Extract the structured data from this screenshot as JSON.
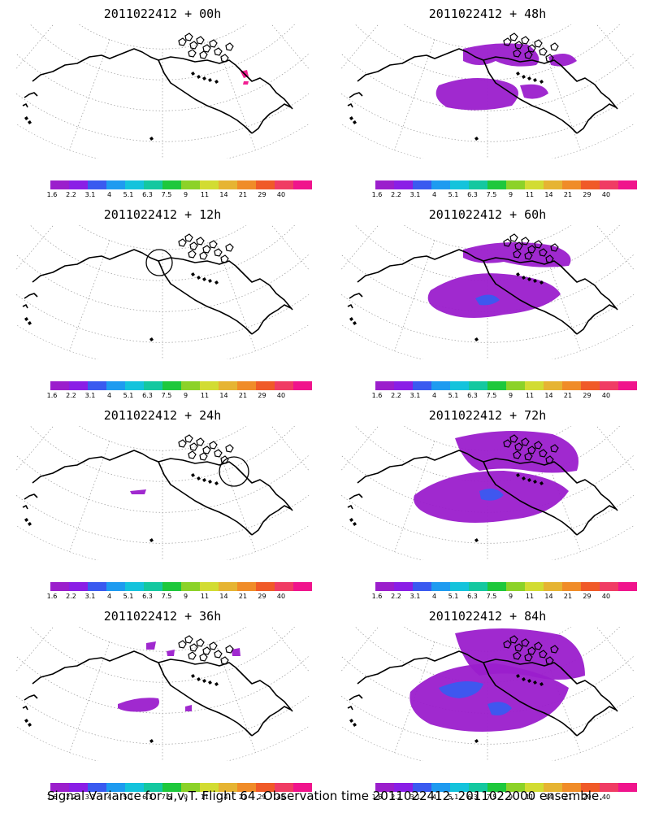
{
  "panels": [
    {
      "title": "2011022412 + 00h",
      "lead": "00h"
    },
    {
      "title": "2011022412 + 48h",
      "lead": "48h"
    },
    {
      "title": "2011022412 + 12h",
      "lead": "12h"
    },
    {
      "title": "2011022412 + 60h",
      "lead": "60h"
    },
    {
      "title": "2011022412 + 24h",
      "lead": "24h"
    },
    {
      "title": "2011022412 + 72h",
      "lead": "72h"
    },
    {
      "title": "2011022412 + 36h",
      "lead": "36h"
    },
    {
      "title": "2011022412 + 84h",
      "lead": "84h"
    }
  ],
  "colorbar": {
    "labels": [
      "1.6",
      "2.2",
      "3.1",
      "4",
      "5.1",
      "6.3",
      "7.5",
      "9",
      "11",
      "14",
      "21",
      "29",
      "40"
    ],
    "colors": [
      "#9b1ecc",
      "#8a1ee6",
      "#3a5af0",
      "#1e9bf0",
      "#14c3dc",
      "#14c8a0",
      "#1ec83c",
      "#8cd228",
      "#d2dc32",
      "#e6b432",
      "#f08c28",
      "#f05a28",
      "#f03c64",
      "#f0148c"
    ]
  },
  "footer": "Signal Variance for u,v,T. Flight 64. Observation time 2011022412. 2011022000 ensemble."
}
